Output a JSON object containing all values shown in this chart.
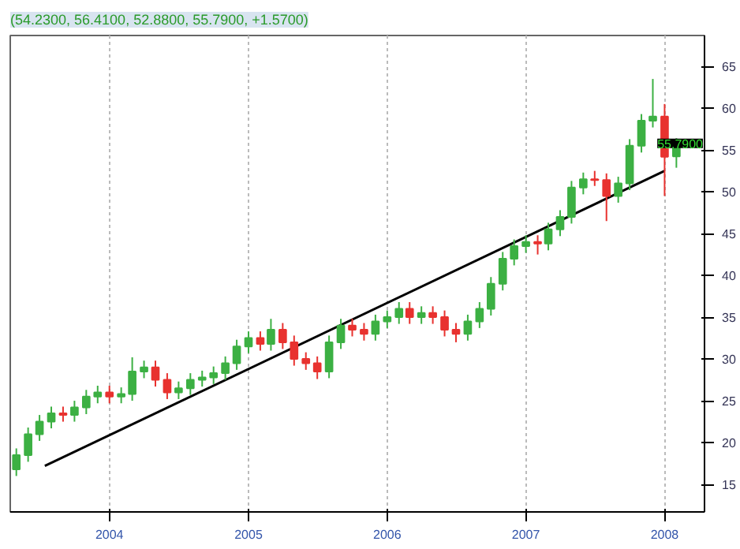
{
  "chart_data": {
    "type": "candlestick",
    "title": "(54.2300, 56.4100, 52.8800, 55.7900, +1.5700)",
    "x": [
      "2003-05",
      "2003-06",
      "2003-07",
      "2003-08",
      "2003-09",
      "2003-10",
      "2003-11",
      "2003-12",
      "2004-01",
      "2004-02",
      "2004-03",
      "2004-04",
      "2004-05",
      "2004-06",
      "2004-07",
      "2004-08",
      "2004-09",
      "2004-10",
      "2004-11",
      "2004-12",
      "2005-01",
      "2005-02",
      "2005-03",
      "2005-04",
      "2005-05",
      "2005-06",
      "2005-07",
      "2005-08",
      "2005-09",
      "2005-10",
      "2005-11",
      "2005-12",
      "2006-01",
      "2006-02",
      "2006-03",
      "2006-04",
      "2006-05",
      "2006-06",
      "2006-07",
      "2006-08",
      "2006-09",
      "2006-10",
      "2006-11",
      "2006-12",
      "2007-01",
      "2007-02",
      "2007-03",
      "2007-04",
      "2007-05",
      "2007-06",
      "2007-07",
      "2007-08",
      "2007-09",
      "2007-10",
      "2007-11",
      "2007-12",
      "2008-01",
      "2008-02"
    ],
    "ohlc": [
      [
        16.8,
        19.3,
        16,
        18.5
      ],
      [
        18.5,
        21.8,
        17.7,
        21
      ],
      [
        21,
        23.3,
        20.2,
        22.5
      ],
      [
        22.5,
        24.3,
        21.7,
        23.5
      ],
      [
        23.5,
        24.3,
        22.5,
        23.3
      ],
      [
        23.3,
        25,
        22.5,
        24.2
      ],
      [
        24.2,
        26.3,
        23.4,
        25.5
      ],
      [
        25.5,
        26.8,
        24.7,
        26
      ],
      [
        26,
        26.8,
        24.7,
        25.5
      ],
      [
        25.5,
        26.6,
        24.7,
        25.8
      ],
      [
        25.8,
        30.2,
        25,
        28.5
      ],
      [
        28.5,
        29.8,
        27.7,
        29
      ],
      [
        29,
        29.8,
        26.7,
        27.5
      ],
      [
        27.5,
        28.3,
        25.2,
        26
      ],
      [
        26,
        27.3,
        25.2,
        26.5
      ],
      [
        26.5,
        28.3,
        25.7,
        27.5
      ],
      [
        27.5,
        28.6,
        26.7,
        27.8
      ],
      [
        27.8,
        29.1,
        27,
        28.3
      ],
      [
        28.3,
        30.3,
        27.5,
        29.5
      ],
      [
        29.5,
        32.3,
        28.7,
        31.5
      ],
      [
        31.5,
        33.3,
        30.7,
        32.5
      ],
      [
        32.5,
        33.3,
        31,
        31.8
      ],
      [
        31.8,
        34.8,
        31,
        33.5
      ],
      [
        33.5,
        34.3,
        31.2,
        32
      ],
      [
        32,
        32.8,
        29.2,
        30
      ],
      [
        30,
        30.8,
        28.7,
        29.5
      ],
      [
        29.5,
        30.3,
        27.6,
        28.5
      ],
      [
        28.5,
        32.8,
        27.7,
        32
      ],
      [
        32,
        34.8,
        31.2,
        34
      ],
      [
        34,
        34.8,
        32.7,
        33.5
      ],
      [
        33.5,
        34.3,
        32.2,
        33
      ],
      [
        33,
        35.3,
        32.2,
        34.5
      ],
      [
        34.5,
        35.8,
        33.7,
        35
      ],
      [
        35,
        36.8,
        34.2,
        36
      ],
      [
        36,
        36.8,
        34.2,
        35
      ],
      [
        35,
        36.3,
        34.2,
        35.5
      ],
      [
        35.5,
        36.3,
        34.2,
        35
      ],
      [
        35,
        35.8,
        32.7,
        33.5
      ],
      [
        33.5,
        34.3,
        32,
        33
      ],
      [
        33,
        35.3,
        32.2,
        34.5
      ],
      [
        34.5,
        36.8,
        33.7,
        36
      ],
      [
        36,
        39.8,
        35.2,
        39
      ],
      [
        39,
        42.8,
        38.2,
        42
      ],
      [
        42,
        44.3,
        41.2,
        43.5
      ],
      [
        43.5,
        44.8,
        42.7,
        44
      ],
      [
        44,
        44.8,
        42.5,
        43.8
      ],
      [
        43.8,
        46.3,
        43,
        45.5
      ],
      [
        45.5,
        47.8,
        44.7,
        47
      ],
      [
        47,
        51.3,
        46.2,
        50.5
      ],
      [
        50.5,
        52.3,
        49.7,
        51.5
      ],
      [
        51.5,
        52.5,
        50.7,
        51.4
      ],
      [
        51.4,
        52.2,
        46.5,
        49.5
      ],
      [
        49.5,
        51.8,
        48.7,
        51
      ],
      [
        51,
        56.3,
        50.2,
        55.5
      ],
      [
        55.5,
        59.3,
        54.7,
        58.5
      ],
      [
        58.5,
        63.5,
        57.7,
        59
      ],
      [
        59,
        60.5,
        49.5,
        54.2
      ],
      [
        54.23,
        56.41,
        52.88,
        55.79
      ]
    ],
    "colors": [
      "#3cb043",
      "#3cb043",
      "#3cb043",
      "#3cb043",
      "#e8322f",
      "#3cb043",
      "#3cb043",
      "#3cb043",
      "#e8322f",
      "#3cb043",
      "#3cb043",
      "#3cb043",
      "#e8322f",
      "#e8322f",
      "#3cb043",
      "#3cb043",
      "#3cb043",
      "#3cb043",
      "#3cb043",
      "#3cb043",
      "#3cb043",
      "#e8322f",
      "#3cb043",
      "#e8322f",
      "#e8322f",
      "#e8322f",
      "#e8322f",
      "#3cb043",
      "#3cb043",
      "#e8322f",
      "#e8322f",
      "#3cb043",
      "#3cb043",
      "#3cb043",
      "#e8322f",
      "#3cb043",
      "#e8322f",
      "#e8322f",
      "#e8322f",
      "#3cb043",
      "#3cb043",
      "#3cb043",
      "#3cb043",
      "#3cb043",
      "#3cb043",
      "#e8322f",
      "#3cb043",
      "#3cb043",
      "#3cb043",
      "#3cb043",
      "#e8322f",
      "#e8322f",
      "#3cb043",
      "#3cb043",
      "#3cb043",
      "#3cb043",
      "#e8322f",
      "#3cb043"
    ],
    "series": [
      {
        "type": "line",
        "color": "#000000",
        "x": [
          "2003-07-15",
          "2008-01-01"
        ],
        "values": [
          17.2,
          52.5
        ]
      }
    ],
    "annotations": [
      {
        "text": "55.7900",
        "x": "2008-02",
        "y": 55.79
      }
    ],
    "xlim": [
      "2003-04-15",
      "2008-04-15"
    ],
    "xticks": [
      "2004",
      "2005",
      "2006",
      "2007",
      "2008"
    ],
    "ylim": [
      11.7,
      68.7
    ],
    "yticks": [
      15,
      20,
      25,
      30,
      35,
      40,
      45,
      50,
      55,
      60,
      65
    ],
    "grid": "x"
  }
}
